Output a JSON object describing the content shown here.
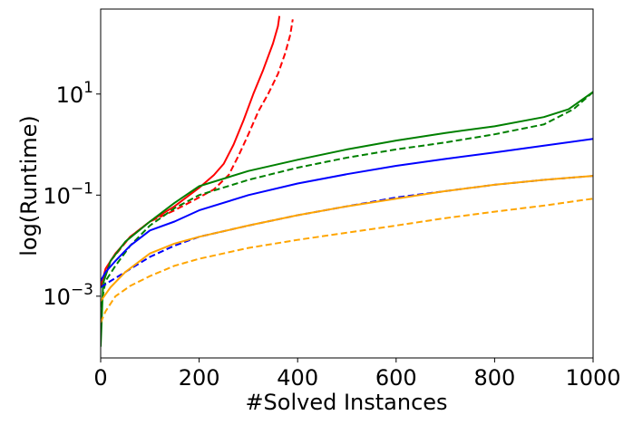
{
  "chart_data": {
    "type": "line",
    "xlabel": "#Solved Instances",
    "ylabel": "log(Runtime)",
    "xlim": [
      0,
      1000
    ],
    "ylim": [
      6e-05,
      480
    ],
    "yscale": "log",
    "grid": false,
    "xticks": [
      {
        "value": 0,
        "label": "0"
      },
      {
        "value": 200,
        "label": "200"
      },
      {
        "value": 400,
        "label": "400"
      },
      {
        "value": 600,
        "label": "600"
      },
      {
        "value": 800,
        "label": "800"
      },
      {
        "value": 1000,
        "label": "1000"
      }
    ],
    "yticks": [
      {
        "value": 0.001,
        "base": "10",
        "exp": "−3"
      },
      {
        "value": 0.1,
        "base": "10",
        "exp": "−1"
      },
      {
        "value": 10,
        "base": "10",
        "exp": "1"
      }
    ],
    "series": [
      {
        "color": "#ff0000",
        "dash": "solid",
        "x": [
          0,
          10,
          30,
          60,
          100,
          150,
          200,
          230,
          250,
          270,
          290,
          310,
          330,
          350,
          360,
          363
        ],
        "y": [
          0.0015,
          0.0035,
          0.007,
          0.015,
          0.03,
          0.06,
          0.14,
          0.25,
          0.42,
          1.0,
          3.0,
          10,
          30,
          100,
          220,
          350
        ]
      },
      {
        "color": "#ff0000",
        "dash": "dashed",
        "x": [
          0,
          20,
          60,
          100,
          150,
          200,
          230,
          260,
          280,
          300,
          320,
          340,
          360,
          375,
          385,
          390
        ],
        "y": [
          0.0015,
          0.005,
          0.015,
          0.03,
          0.05,
          0.09,
          0.13,
          0.25,
          0.6,
          1.6,
          4.5,
          10,
          25,
          65,
          150,
          300
        ]
      },
      {
        "color": "#008000",
        "dash": "solid",
        "x": [
          0,
          5,
          20,
          50,
          100,
          150,
          200,
          300,
          400,
          500,
          600,
          700,
          800,
          900,
          950,
          1000
        ],
        "y": [
          0.0001,
          0.0018,
          0.005,
          0.012,
          0.03,
          0.07,
          0.15,
          0.3,
          0.5,
          0.8,
          1.2,
          1.7,
          2.3,
          3.5,
          5.0,
          11
        ]
      },
      {
        "color": "#008000",
        "dash": "dashed",
        "x": [
          0,
          10,
          30,
          60,
          100,
          150,
          200,
          300,
          400,
          500,
          600,
          700,
          800,
          900,
          960,
          1000
        ],
        "y": [
          0.0006,
          0.002,
          0.004,
          0.01,
          0.025,
          0.055,
          0.1,
          0.2,
          0.35,
          0.55,
          0.8,
          1.1,
          1.6,
          2.5,
          5.0,
          11
        ]
      },
      {
        "color": "#0000ff",
        "dash": "solid",
        "x": [
          0,
          10,
          30,
          60,
          100,
          150,
          200,
          300,
          400,
          500,
          600,
          700,
          800,
          900,
          1000
        ],
        "y": [
          0.002,
          0.003,
          0.005,
          0.01,
          0.02,
          0.03,
          0.05,
          0.1,
          0.17,
          0.26,
          0.38,
          0.52,
          0.7,
          0.95,
          1.3
        ]
      },
      {
        "color": "#0000ff",
        "dash": "dashed",
        "x": [
          0,
          20,
          50,
          100,
          150,
          200,
          300,
          400,
          500,
          600,
          700,
          800,
          900,
          1000
        ],
        "y": [
          0.0015,
          0.002,
          0.003,
          0.006,
          0.01,
          0.015,
          0.025,
          0.04,
          0.06,
          0.09,
          0.12,
          0.16,
          0.2,
          0.24
        ]
      },
      {
        "color": "#ffa500",
        "dash": "solid",
        "x": [
          0,
          20,
          50,
          100,
          150,
          200,
          300,
          400,
          500,
          600,
          700,
          800,
          900,
          1000
        ],
        "y": [
          0.0008,
          0.0015,
          0.003,
          0.007,
          0.011,
          0.015,
          0.025,
          0.04,
          0.06,
          0.085,
          0.12,
          0.16,
          0.2,
          0.24
        ]
      },
      {
        "color": "#ffa500",
        "dash": "dashed",
        "x": [
          0,
          10,
          30,
          60,
          100,
          150,
          200,
          300,
          400,
          500,
          600,
          700,
          800,
          900,
          1000
        ],
        "y": [
          0.0003,
          0.0005,
          0.001,
          0.0016,
          0.0025,
          0.004,
          0.0055,
          0.009,
          0.013,
          0.018,
          0.025,
          0.035,
          0.047,
          0.062,
          0.085
        ]
      }
    ]
  }
}
